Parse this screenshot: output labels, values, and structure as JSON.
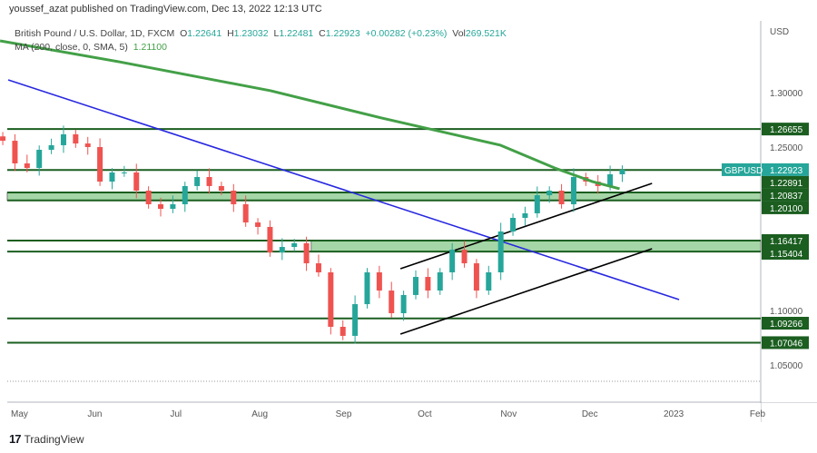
{
  "attribution": "youssef_azat published on TradingView.com, Dec 13, 2022 12:13 UTC",
  "legend": {
    "symbol_desc": "British Pound / U.S. Dollar, 1D, FXCM",
    "o_label": "O",
    "o": "1.22641",
    "h_label": "H",
    "h": "1.23032",
    "l_label": "L",
    "l": "1.22481",
    "c_label": "C",
    "c": "1.22923",
    "change": "+0.00282 (+0.23%)",
    "vol_label": "Vol",
    "vol": "269.521K",
    "ma_desc": "MA (200, close, 0, SMA, 5)",
    "ma_value": "1.21100"
  },
  "footer": {
    "logo": "17",
    "brand": "TradingView"
  },
  "chart_data": {
    "type": "candlestick",
    "symbol": "GBPUSD",
    "currency_label": "USD",
    "ylim": [
      1.025,
      1.35
    ],
    "xlim": [
      "2022-04-28",
      "2023-02-28"
    ],
    "grid": false,
    "y_ticks": [
      "1.30000",
      "1.25000",
      "1.10000",
      "1.05000"
    ],
    "x_ticks": [
      {
        "label": "May",
        "date": "2022-05-01"
      },
      {
        "label": "Jun",
        "date": "2022-06-01"
      },
      {
        "label": "Jul",
        "date": "2022-07-01"
      },
      {
        "label": "Aug",
        "date": "2022-08-01"
      },
      {
        "label": "Sep",
        "date": "2022-09-01"
      },
      {
        "label": "Oct",
        "date": "2022-10-01"
      },
      {
        "label": "Nov",
        "date": "2022-11-01"
      },
      {
        "label": "Dec",
        "date": "2022-12-01"
      },
      {
        "label": "2023",
        "date": "2023-01-01"
      },
      {
        "label": "Feb",
        "date": "2023-02-01"
      }
    ],
    "candles_start": "2022-04-28",
    "candles_end": "2022-12-13",
    "closes_approx": [
      1.2558,
      1.235,
      1.2308,
      1.2475,
      1.2517,
      1.2617,
      1.2533,
      1.25,
      1.2183,
      1.2267,
      1.2267,
      1.21,
      1.1975,
      1.1933,
      1.1975,
      1.2142,
      1.2225,
      1.2142,
      1.21,
      1.1975,
      1.1808,
      1.1767,
      1.1533,
      1.1583,
      1.1617,
      1.1433,
      1.135,
      1.085,
      1.0767,
      1.1058,
      1.135,
      1.1183,
      1.0975,
      1.1142,
      1.1308,
      1.1183,
      1.135,
      1.1558,
      1.1433,
      1.1183,
      1.135,
      1.1725,
      1.185,
      1.1892,
      1.2058,
      1.21,
      1.1975,
      1.2225,
      1.2183,
      1.2142,
      1.225,
      1.2292
    ],
    "last_price": {
      "label": "GBPUSD",
      "value": "1.22923",
      "color": "#26a69a"
    },
    "levels": [
      {
        "value": "1.26655"
      },
      {
        "value": "1.22891"
      },
      {
        "value": "1.20837"
      },
      {
        "value": "1.20100"
      },
      {
        "value": "1.16417"
      },
      {
        "value": "1.15404"
      },
      {
        "value": "1.09266"
      },
      {
        "value": "1.07046"
      }
    ],
    "zones": [
      {
        "top": 1.20837,
        "bottom": 1.201,
        "from": "2022-04-28"
      },
      {
        "top": 1.16417,
        "bottom": 1.15404,
        "from": "2022-08-20"
      }
    ],
    "low_marker": 1.035,
    "ma200": [
      [
        "2022-04-27",
        1.3475
      ],
      [
        "2022-06-10",
        1.3283
      ],
      [
        "2022-08-05",
        1.3017
      ],
      [
        "2022-09-15",
        1.2767
      ],
      [
        "2022-10-29",
        1.2517
      ],
      [
        "2022-11-18",
        1.2308
      ],
      [
        "2022-12-02",
        1.2183
      ],
      [
        "2022-12-12",
        1.2117
      ]
    ],
    "trendlines": [
      {
        "color": "#2828e0",
        "points": [
          [
            "2022-04-30",
            1.3117
          ],
          [
            "2023-01-03",
            1.11
          ]
        ]
      },
      {
        "color": "#000000",
        "points": [
          [
            "2022-09-22",
            1.1383
          ],
          [
            "2022-12-24",
            1.2167
          ]
        ]
      },
      {
        "color": "#000000",
        "points": [
          [
            "2022-09-22",
            1.0783
          ],
          [
            "2022-12-24",
            1.1567
          ]
        ]
      }
    ],
    "colors": {
      "up": "#26a69a",
      "down": "#ef5350",
      "ma": "#43a047",
      "level": "#1b5e20",
      "zone": "#a5d6a7",
      "label_bg": "#1b5e20"
    }
  }
}
